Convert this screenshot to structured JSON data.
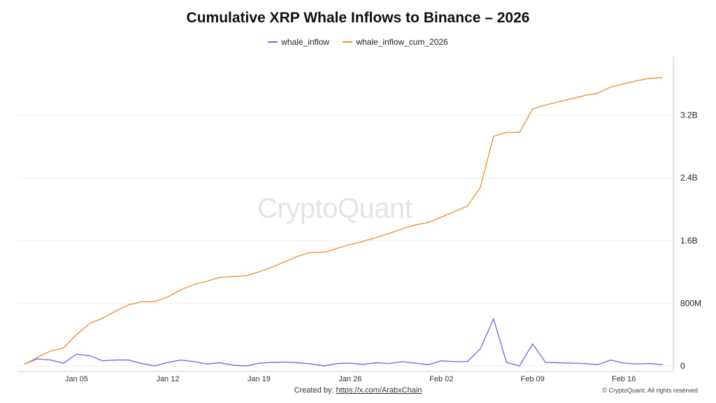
{
  "chart_data": {
    "type": "line",
    "title": "Cumulative XRP Whale Inflows to Binance – 2026",
    "xlabel": "",
    "ylabel": "",
    "x_ticks": [
      "Jan 05",
      "Jan 12",
      "Jan 19",
      "Jan 26",
      "Feb 02",
      "Feb 09",
      "Feb 16"
    ],
    "y_ticks": [
      "0",
      "800M",
      "1.6B",
      "2.4B",
      "3.2B"
    ],
    "ylim": [
      0,
      4000000000
    ],
    "grid": true,
    "legend_position": "top-center",
    "series": [
      {
        "name": "whale_inflow",
        "color": "#7b68ee",
        "values": [
          0.025,
          0.09,
          0.075,
          0.035,
          0.15,
          0.13,
          0.065,
          0.075,
          0.075,
          0.03,
          0.0,
          0.045,
          0.075,
          0.055,
          0.025,
          0.04,
          0.01,
          0.0,
          0.035,
          0.045,
          0.05,
          0.04,
          0.025,
          0.0,
          0.03,
          0.035,
          0.02,
          0.04,
          0.03,
          0.055,
          0.035,
          0.015,
          0.065,
          0.055,
          0.055,
          0.22,
          0.6,
          0.045,
          0.0,
          0.28,
          0.045,
          0.04,
          0.035,
          0.03,
          0.015,
          0.075,
          0.035,
          0.025,
          0.03,
          0.015
        ]
      },
      {
        "name": "whale_inflow_cum_2026",
        "color": "#f0913a",
        "values": [
          0.02,
          0.11,
          0.19,
          0.23,
          0.4,
          0.54,
          0.61,
          0.7,
          0.78,
          0.82,
          0.82,
          0.88,
          0.97,
          1.04,
          1.08,
          1.13,
          1.14,
          1.15,
          1.2,
          1.26,
          1.33,
          1.4,
          1.45,
          1.45,
          1.5,
          1.55,
          1.59,
          1.64,
          1.69,
          1.75,
          1.8,
          1.83,
          1.9,
          1.97,
          2.04,
          2.28,
          2.93,
          2.98,
          2.98,
          3.28,
          3.33,
          3.37,
          3.41,
          3.45,
          3.48,
          3.56,
          3.6,
          3.64,
          3.67,
          3.68
        ]
      }
    ]
  },
  "footer": {
    "created_by": "Created by:",
    "link": "https://x.com/ArabxChain",
    "copyright": "© CryptoQuant. All rights reserved"
  },
  "watermark": "CryptoQuant"
}
